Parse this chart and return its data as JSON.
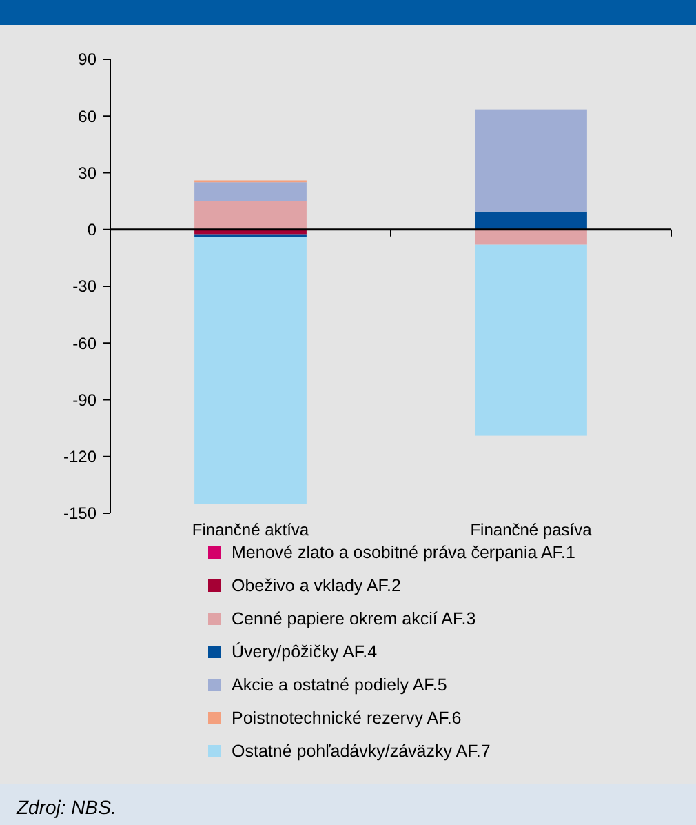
{
  "chart_data": {
    "type": "bar",
    "stacked": true,
    "categories": [
      "Finančné aktíva",
      "Finančné pasíva"
    ],
    "series": [
      {
        "name": "Menové zlato a osobitné práva čerpania AF.1",
        "color": "#d4006a",
        "values": [
          0,
          0
        ]
      },
      {
        "name": "Obeživo a vklady AF.2",
        "color": "#a50034",
        "values": [
          -2.5,
          0
        ]
      },
      {
        "name": "Cenné papiere okrem akcií AF.3",
        "color": "#e0a3a6",
        "values": [
          15,
          -8
        ]
      },
      {
        "name": "Úvery/pôžičky AF.4",
        "color": "#004f9a",
        "values": [
          -1.5,
          9.5
        ]
      },
      {
        "name": "Akcie a ostatné podiely AF.5",
        "color": "#9fadd4",
        "values": [
          10,
          54
        ]
      },
      {
        "name": "Poistnotechnické rezervy AF.6",
        "color": "#f4a07e",
        "values": [
          1,
          0
        ]
      },
      {
        "name": "Ostatné pohľadávky/záväzky AF.7",
        "color": "#a3daf3",
        "values": [
          -141,
          -101
        ]
      }
    ],
    "ylim": [
      -150,
      90
    ],
    "yticks": [
      -150,
      -120,
      -90,
      -60,
      -30,
      0,
      30,
      60,
      90
    ],
    "legend": "bottom",
    "annotations": [
      "Zdroj: NBS."
    ]
  }
}
